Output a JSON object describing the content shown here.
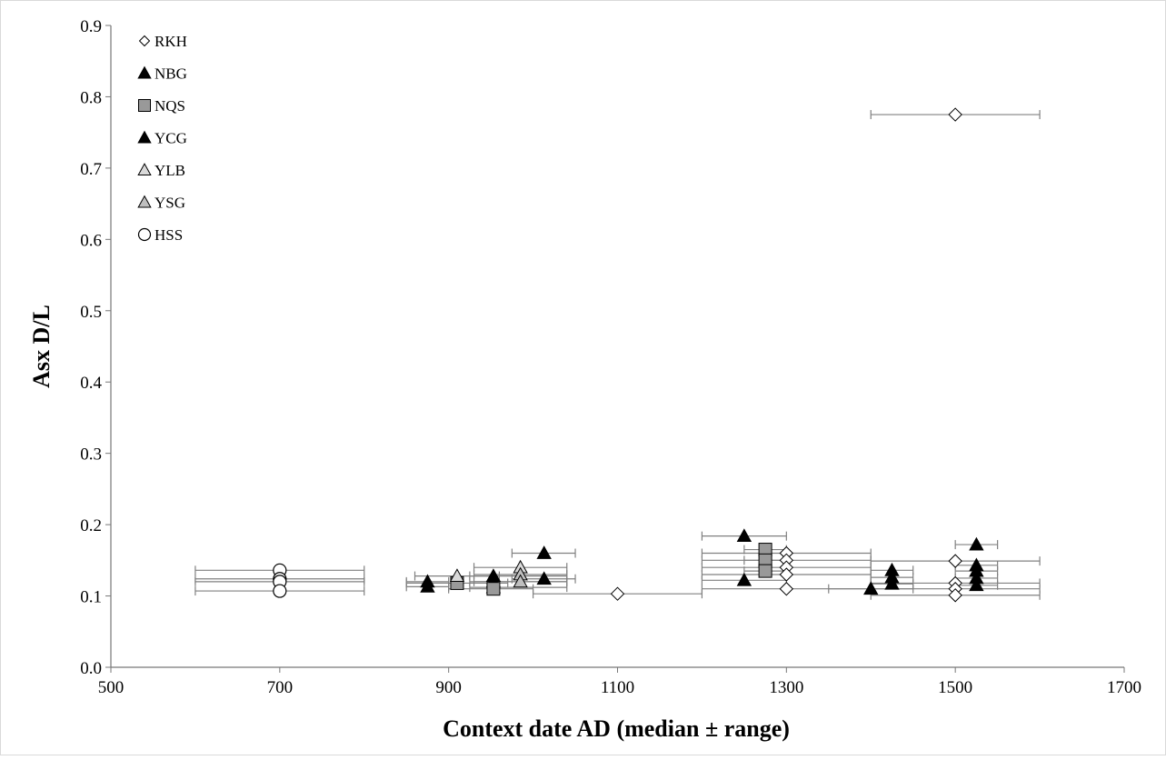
{
  "chart_data": {
    "type": "scatter",
    "title": "",
    "xlabel": "Context date AD (median ± range)",
    "ylabel": "Asx D/L",
    "xlim": [
      500,
      1700
    ],
    "ylim": [
      0,
      0.9
    ],
    "xticks": [
      "500",
      "700",
      "900",
      "1100",
      "1300",
      "1500",
      "1700"
    ],
    "yticks": [
      "0.0",
      "0.1",
      "0.2",
      "0.3",
      "0.4",
      "0.5",
      "0.6",
      "0.7",
      "0.8",
      "0.9"
    ],
    "grid": false,
    "legend_position": "top-left",
    "series": [
      {
        "name": "RKH",
        "marker": "diamond",
        "fill": "#ffffff",
        "points": [
          {
            "x": 1100,
            "y": 0.103,
            "xmin": 1000,
            "xmax": 1200
          },
          {
            "x": 1300,
            "y": 0.16,
            "xmin": 1200,
            "xmax": 1400
          },
          {
            "x": 1300,
            "y": 0.15,
            "xmin": 1200,
            "xmax": 1400
          },
          {
            "x": 1300,
            "y": 0.14,
            "xmin": 1200,
            "xmax": 1400
          },
          {
            "x": 1300,
            "y": 0.13,
            "xmin": 1200,
            "xmax": 1400
          },
          {
            "x": 1300,
            "y": 0.11,
            "xmin": 1200,
            "xmax": 1400
          },
          {
            "x": 1500,
            "y": 0.775,
            "xmin": 1400,
            "xmax": 1600
          },
          {
            "x": 1500,
            "y": 0.149,
            "xmin": 1400,
            "xmax": 1600
          },
          {
            "x": 1500,
            "y": 0.118,
            "xmin": 1400,
            "xmax": 1600
          },
          {
            "x": 1500,
            "y": 0.11,
            "xmin": 1400,
            "xmax": 1600
          },
          {
            "x": 1500,
            "y": 0.101,
            "xmin": 1400,
            "xmax": 1600
          }
        ]
      },
      {
        "name": "NBG",
        "marker": "triangle",
        "fill": "#000000",
        "points": [
          {
            "x": 875,
            "y": 0.12,
            "xmin": 850,
            "xmax": 900
          },
          {
            "x": 875,
            "y": 0.113,
            "xmin": 850,
            "xmax": 900
          },
          {
            "x": 953,
            "y": 0.128,
            "xmin": 925,
            "xmax": 1040
          },
          {
            "x": 953,
            "y": 0.12,
            "xmin": 925,
            "xmax": 1040
          },
          {
            "x": 953,
            "y": 0.112,
            "xmin": 925,
            "xmax": 1040
          }
        ]
      },
      {
        "name": "NQS",
        "marker": "square",
        "fill": "#999999",
        "points": [
          {
            "x": 910,
            "y": 0.118,
            "xmin": 850,
            "xmax": 970
          },
          {
            "x": 953,
            "y": 0.11,
            "xmin": 900,
            "xmax": 1000
          },
          {
            "x": 1275,
            "y": 0.165,
            "xmin": 1250,
            "xmax": 1300
          },
          {
            "x": 1275,
            "y": 0.15,
            "xmin": 1250,
            "xmax": 1300
          },
          {
            "x": 1275,
            "y": 0.135,
            "xmin": 1250,
            "xmax": 1300
          }
        ]
      },
      {
        "name": "YCG",
        "marker": "triangle",
        "fill": "#000000",
        "points": [
          {
            "x": 1013,
            "y": 0.16,
            "xmin": 975,
            "xmax": 1050
          },
          {
            "x": 1013,
            "y": 0.124,
            "xmin": 975,
            "xmax": 1050
          },
          {
            "x": 1250,
            "y": 0.184,
            "xmin": 1200,
            "xmax": 1300
          },
          {
            "x": 1250,
            "y": 0.122,
            "xmin": 1200,
            "xmax": 1300
          },
          {
            "x": 1400,
            "y": 0.11,
            "xmin": 1350,
            "xmax": 1450
          },
          {
            "x": 1425,
            "y": 0.136,
            "xmin": 1400,
            "xmax": 1450
          },
          {
            "x": 1425,
            "y": 0.126,
            "xmin": 1400,
            "xmax": 1450
          },
          {
            "x": 1425,
            "y": 0.117,
            "xmin": 1400,
            "xmax": 1450
          },
          {
            "x": 1525,
            "y": 0.172,
            "xmin": 1500,
            "xmax": 1550
          },
          {
            "x": 1525,
            "y": 0.143,
            "xmin": 1500,
            "xmax": 1550
          },
          {
            "x": 1525,
            "y": 0.135,
            "xmin": 1500,
            "xmax": 1550
          },
          {
            "x": 1525,
            "y": 0.125,
            "xmin": 1500,
            "xmax": 1550
          },
          {
            "x": 1525,
            "y": 0.115,
            "xmin": 1500,
            "xmax": 1550
          }
        ]
      },
      {
        "name": "YLB",
        "marker": "triangle",
        "fill": "#d9d9d9",
        "points": [
          {
            "x": 910,
            "y": 0.128,
            "xmin": 860,
            "xmax": 960
          },
          {
            "x": 985,
            "y": 0.14,
            "xmin": 930,
            "xmax": 1040
          }
        ]
      },
      {
        "name": "YSG",
        "marker": "triangle",
        "fill": "#bfbfbf",
        "points": [
          {
            "x": 985,
            "y": 0.13,
            "xmin": 930,
            "xmax": 1040
          },
          {
            "x": 985,
            "y": 0.12,
            "xmin": 930,
            "xmax": 1040
          }
        ]
      },
      {
        "name": "HSS",
        "marker": "circle",
        "fill": "#ffffff",
        "points": [
          {
            "x": 700,
            "y": 0.136,
            "xmin": 600,
            "xmax": 800
          },
          {
            "x": 700,
            "y": 0.124,
            "xmin": 600,
            "xmax": 800
          },
          {
            "x": 700,
            "y": 0.12,
            "xmin": 600,
            "xmax": 800
          },
          {
            "x": 700,
            "y": 0.107,
            "xmin": 600,
            "xmax": 800
          }
        ]
      }
    ]
  }
}
